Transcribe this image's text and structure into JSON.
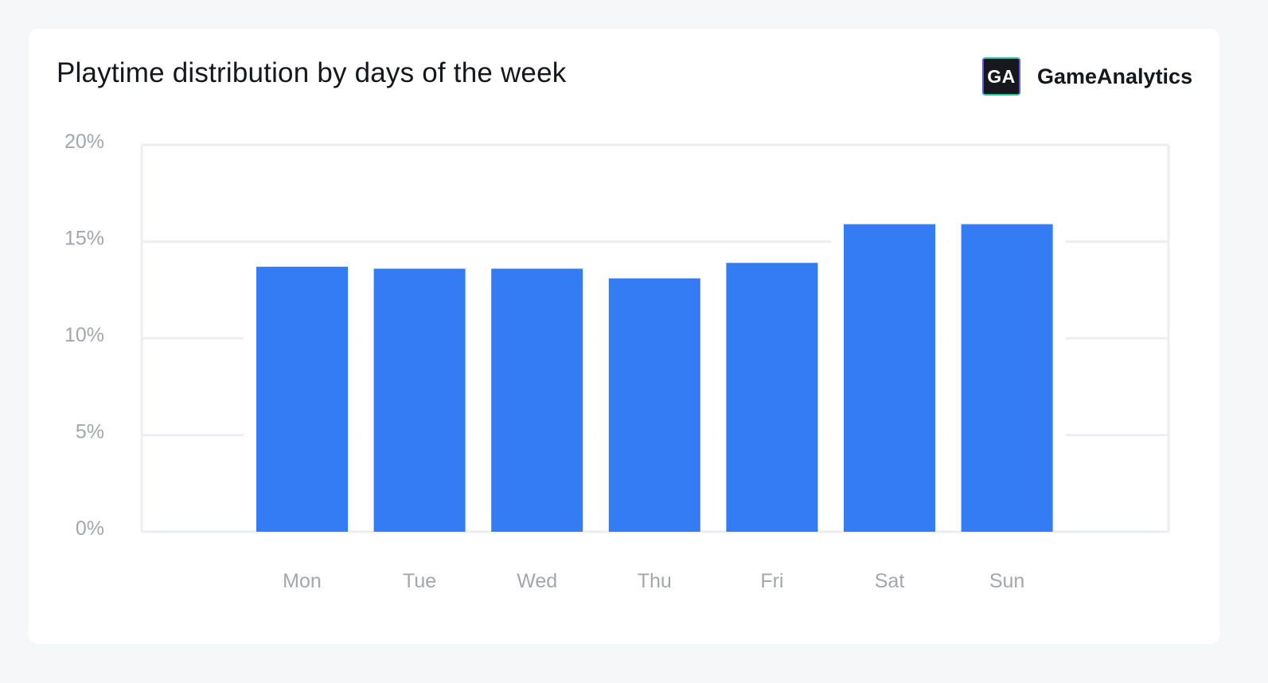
{
  "header": {
    "title": "Playtime distribution by days of the week",
    "brand_logo_text": "GA",
    "brand_name": "GameAnalytics"
  },
  "chart_data": {
    "type": "bar",
    "title": "Playtime distribution by days of the week",
    "xlabel": "",
    "ylabel": "",
    "categories": [
      "Mon",
      "Tue",
      "Wed",
      "Thu",
      "Fri",
      "Sat",
      "Sun"
    ],
    "values": [
      13.7,
      13.6,
      13.6,
      13.1,
      13.9,
      15.9,
      15.9
    ],
    "ylim": [
      0,
      20
    ],
    "yticks": [
      0,
      5,
      10,
      15,
      20
    ],
    "ytick_labels": [
      "0%",
      "5%",
      "10%",
      "15%",
      "20%"
    ],
    "grid": true,
    "legend": "none",
    "colors": {
      "bar": "#337cf4",
      "grid": "#eceef1",
      "tick_text": "#a3a6ad"
    }
  }
}
